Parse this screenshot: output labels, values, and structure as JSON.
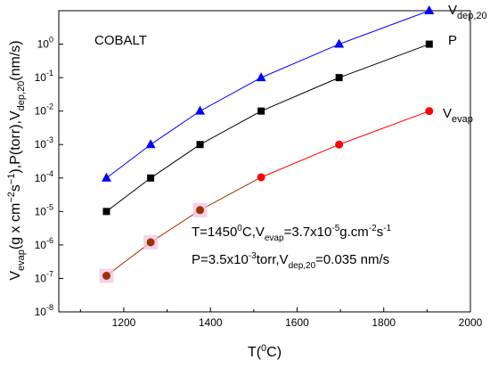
{
  "chart_data": {
    "type": "line",
    "title": "COBALT",
    "xlabel": "T(0C)",
    "ylabel": "Vevap(g x cm-2s-1),P(torr),Vdep,20(nm/s)",
    "xlim": [
      1050,
      2000
    ],
    "ylim_log10": [
      -8,
      1
    ],
    "y_scale": "log",
    "grid": false,
    "x_ticks": [
      "1200",
      "1400",
      "1600",
      "1800",
      "2000"
    ],
    "y_ticks": [
      "10-8",
      "10-7",
      "10-6",
      "10-5",
      "10-4",
      "10-3",
      "10-2",
      "10-1",
      "100"
    ],
    "series": [
      {
        "name": "Vdep,20",
        "color": "#0000ff",
        "marker": "triangle",
        "x": [
          1160,
          1262,
          1376,
          1517,
          1697,
          1905
        ],
        "y": [
          0.0001,
          0.001,
          0.01,
          0.1,
          1,
          10
        ]
      },
      {
        "name": "P",
        "color": "#000000",
        "marker": "square",
        "x": [
          1160,
          1262,
          1376,
          1517,
          1697,
          1905
        ],
        "y": [
          1e-05,
          0.0001,
          0.001,
          0.01,
          0.1,
          1
        ]
      },
      {
        "name": "Vevap",
        "color": "#ff0000",
        "line_color_low": "#993300",
        "marker": "circle",
        "x": [
          1160,
          1262,
          1376,
          1517,
          1697,
          1905
        ],
        "y": [
          1.2e-07,
          1.2e-06,
          1.1e-05,
          0.000105,
          0.001,
          0.01
        ]
      }
    ],
    "annotations": {
      "line1": "T=14500C,Vevap=3.7x10-5g.cm-2s-1",
      "line2": "P=3.5x10-3torr,Vdep,20=0.035 nm/s"
    }
  }
}
